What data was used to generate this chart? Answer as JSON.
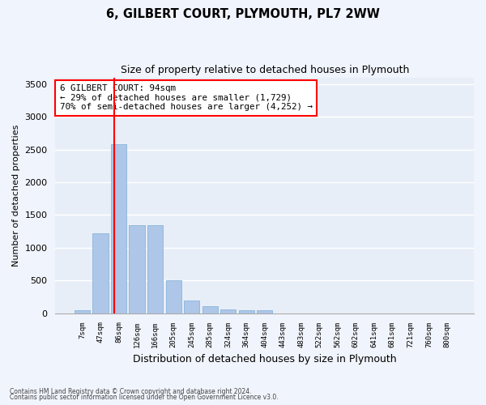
{
  "title": "6, GILBERT COURT, PLYMOUTH, PL7 2WW",
  "subtitle": "Size of property relative to detached houses in Plymouth",
  "xlabel": "Distribution of detached houses by size in Plymouth",
  "ylabel": "Number of detached properties",
  "bin_labels": [
    "7sqm",
    "47sqm",
    "86sqm",
    "126sqm",
    "166sqm",
    "205sqm",
    "245sqm",
    "285sqm",
    "324sqm",
    "364sqm",
    "404sqm",
    "443sqm",
    "483sqm",
    "522sqm",
    "562sqm",
    "602sqm",
    "641sqm",
    "681sqm",
    "721sqm",
    "760sqm",
    "800sqm"
  ],
  "bar_values": [
    50,
    1225,
    2580,
    1340,
    1340,
    500,
    190,
    110,
    55,
    50,
    40,
    0,
    0,
    0,
    0,
    0,
    0,
    0,
    0,
    0,
    0
  ],
  "bar_color": "#aec6e8",
  "bar_edgecolor": "#7aafd4",
  "bg_color": "#e8eef8",
  "fig_bg_color": "#f0f4fc",
  "grid_color": "#ffffff",
  "annotation_title": "6 GILBERT COURT: 94sqm",
  "annotation_line1": "← 29% of detached houses are smaller (1,729)",
  "annotation_line2": "70% of semi-detached houses are larger (4,252) →",
  "ylim": [
    0,
    3600
  ],
  "yticks": [
    0,
    500,
    1000,
    1500,
    2000,
    2500,
    3000,
    3500
  ],
  "property_sqm": 94,
  "bin_starts": [
    7,
    47,
    86,
    126,
    166,
    205,
    245,
    285,
    324,
    364,
    404,
    443,
    483,
    522,
    562,
    602,
    641,
    681,
    721,
    760,
    800
  ],
  "footer1": "Contains HM Land Registry data © Crown copyright and database right 2024.",
  "footer2": "Contains public sector information licensed under the Open Government Licence v3.0."
}
